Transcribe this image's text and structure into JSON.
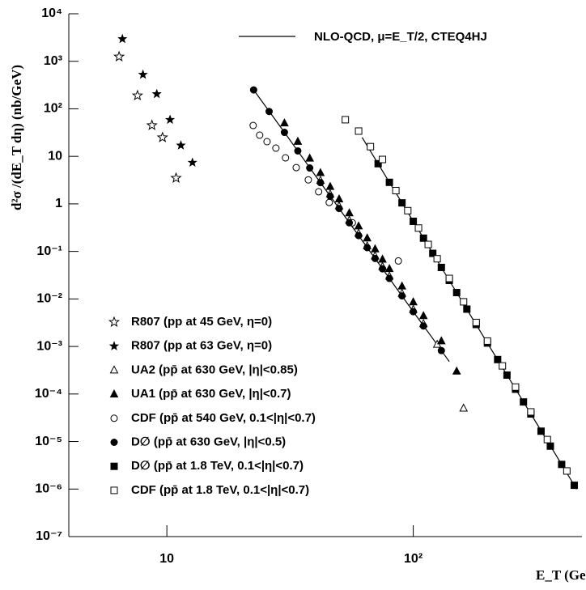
{
  "chart_data": {
    "type": "scatter",
    "xscale": "log",
    "yscale": "log",
    "xlim": [
      4,
      480
    ],
    "ylim": [
      1e-07,
      10000
    ],
    "xticks": [
      10,
      {
        "value": 100,
        "label": "10²"
      }
    ],
    "yticks": [
      {
        "value": 10000,
        "label": "10⁴"
      },
      {
        "value": 1000,
        "label": "10³"
      },
      {
        "value": 100,
        "label": "10²"
      },
      10,
      1,
      {
        "value": 0.1,
        "label": "10⁻¹"
      },
      {
        "value": 0.01,
        "label": "10⁻²"
      },
      {
        "value": 0.001,
        "label": "10⁻³"
      },
      {
        "value": 0.0001,
        "label": "10⁻⁴"
      },
      {
        "value": 1e-05,
        "label": "10⁻⁵"
      },
      {
        "value": 1e-06,
        "label": "10⁻⁶"
      },
      {
        "value": 1e-07,
        "label": "10⁻⁷"
      }
    ],
    "x_label": "E_T (GeV)",
    "y_label": "d²σ /(dE_T dη) (nb/GeV)",
    "curve_label": "NLO-QCD, μ=E_T/2, CTEQ4HJ",
    "curves": [
      {
        "x": [
          22.5,
          30,
          40,
          50,
          60,
          80,
          100,
          120,
          140
        ],
        "values": [
          250,
          32,
          4.0,
          0.8,
          0.215,
          0.027,
          0.0054,
          0.00147,
          0.00048
        ]
      },
      {
        "x": [
          62,
          80,
          100,
          150,
          200,
          300,
          400,
          460
        ],
        "values": [
          25,
          2.84,
          0.43,
          0.0136,
          0.00118,
          3.8e-05,
          3.3e-06,
          9.9e-07
        ]
      }
    ],
    "series": [
      {
        "name": "R807 (pp at 45 GeV, η=0)",
        "marker": "open-star",
        "color": "#000000",
        "x": [
          6.4,
          7.6,
          8.7,
          9.6,
          10.9
        ],
        "values": [
          1250,
          190,
          45,
          25,
          3.5
        ]
      },
      {
        "name": "R807 (pp at 63 GeV, η=0)",
        "marker": "star",
        "color": "#000000",
        "x": [
          6.6,
          8.0,
          9.1,
          10.3,
          11.4,
          12.7
        ],
        "values": [
          2950,
          525,
          205,
          59,
          17,
          7.4
        ]
      },
      {
        "name": "UA2 (pp̄ at 630 GeV, |η|<0.85)",
        "marker": "open-triangle",
        "color": "#000000",
        "x": [
          42,
          46,
          50,
          55,
          60,
          65,
          70,
          75,
          80,
          90,
          100,
          110,
          125,
          160
        ],
        "values": [
          3.1,
          1.6,
          0.9,
          0.45,
          0.24,
          0.13,
          0.08,
          0.048,
          0.03,
          0.013,
          0.006,
          0.003,
          0.0011,
          5e-05
        ]
      },
      {
        "name": "UA1 (pp̄ at 630 GeV, |η|<0.7)",
        "marker": "triangle",
        "color": "#000000",
        "x": [
          30,
          34,
          38,
          42,
          46,
          50,
          55,
          60,
          65,
          70,
          75,
          80,
          90,
          100,
          110,
          130,
          150
        ],
        "values": [
          50,
          20.5,
          9.1,
          4.5,
          2.3,
          1.26,
          0.64,
          0.34,
          0.19,
          0.112,
          0.068,
          0.043,
          0.0185,
          0.0086,
          0.0044,
          0.0013,
          0.0003
        ]
      },
      {
        "name": "CDF (pp̄ at 540 GeV, 0.1<|η|<0.7)",
        "marker": "open-circle",
        "color": "#000000",
        "x": [
          22.4,
          23.8,
          25.5,
          27.7,
          30.3,
          33.5,
          37.5,
          41.3,
          45.6,
          56.6,
          87
        ],
        "values": [
          44.6,
          27.9,
          20.4,
          14.9,
          9.3,
          5.8,
          3.2,
          1.8,
          1.07,
          0.4,
          0.063
        ]
      },
      {
        "name": "D∅ (pp̄ at 630 GeV, |η|<0.5)",
        "marker": "circle",
        "color": "#000000",
        "x": [
          22.5,
          26,
          30,
          34,
          38,
          42,
          46,
          50,
          55,
          60,
          65,
          70,
          75,
          80,
          90,
          100,
          110,
          130
        ],
        "values": [
          250,
          88,
          32,
          13,
          5.7,
          2.8,
          1.45,
          0.8,
          0.4,
          0.215,
          0.12,
          0.071,
          0.043,
          0.027,
          0.0116,
          0.0054,
          0.0027,
          0.00082
        ]
      },
      {
        "name": "D∅ (pp̄ at 1.8 TeV, 0.1<|η|<0.7)",
        "marker": "square",
        "color": "#000000",
        "x": [
          72,
          80,
          90,
          100,
          110,
          120,
          130,
          140,
          150,
          165,
          180,
          200,
          220,
          240,
          260,
          280,
          300,
          330,
          360,
          400,
          450
        ],
        "values": [
          7.0,
          2.84,
          1.05,
          0.43,
          0.19,
          0.091,
          0.046,
          0.0245,
          0.0136,
          0.0061,
          0.0029,
          0.00118,
          0.00053,
          0.00025,
          0.000126,
          6.8e-05,
          3.8e-05,
          1.65e-05,
          8e-06,
          3.3e-06,
          1.2e-06
        ]
      },
      {
        "name": "CDF (pp̄ at 1.8 TeV, 0.1<|η|<0.7)",
        "marker": "open-square",
        "color": "#000000",
        "x": [
          53,
          60,
          67,
          75,
          85,
          95,
          105,
          115,
          125,
          140,
          160,
          180,
          200,
          230,
          260,
          300,
          350,
          420
        ],
        "values": [
          59,
          34,
          16,
          8.6,
          1.9,
          0.72,
          0.31,
          0.14,
          0.07,
          0.027,
          0.0087,
          0.0032,
          0.0013,
          0.00039,
          0.00014,
          4.2e-05,
          1.1e-05,
          2.4e-06
        ]
      }
    ]
  }
}
